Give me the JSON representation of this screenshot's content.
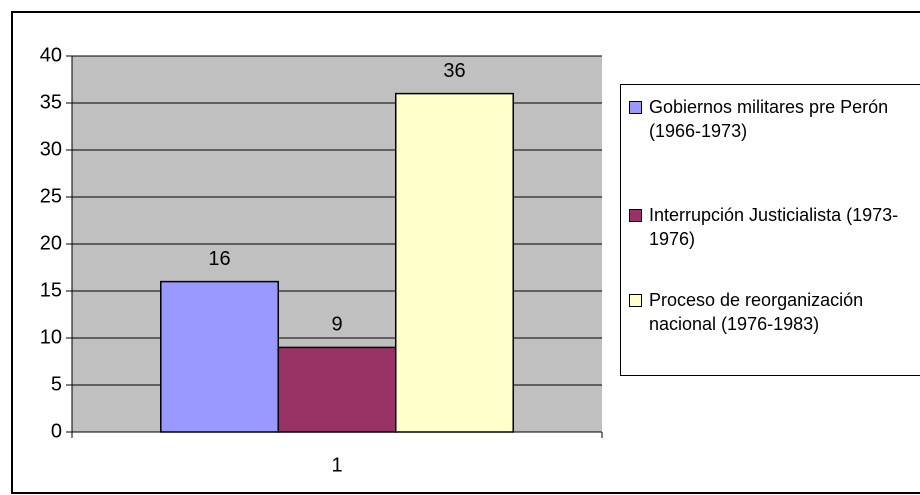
{
  "chart_data": {
    "type": "bar",
    "categories": [
      "1"
    ],
    "series": [
      {
        "name": "Gobiernos militares pre Perón (1966-1973)",
        "color": "#9999ff",
        "values": [
          16
        ]
      },
      {
        "name": "Interrupción Justicialista (1973-1976)",
        "color": "#993366",
        "values": [
          9
        ]
      },
      {
        "name": "Proceso de reorganización nacional (1976-1983)",
        "color": "#ffffcc",
        "values": [
          36
        ]
      }
    ],
    "ylim": [
      0,
      40
    ],
    "yticks": [
      0,
      5,
      10,
      15,
      20,
      25,
      30,
      35,
      40
    ],
    "grid": true,
    "legend": "right"
  }
}
